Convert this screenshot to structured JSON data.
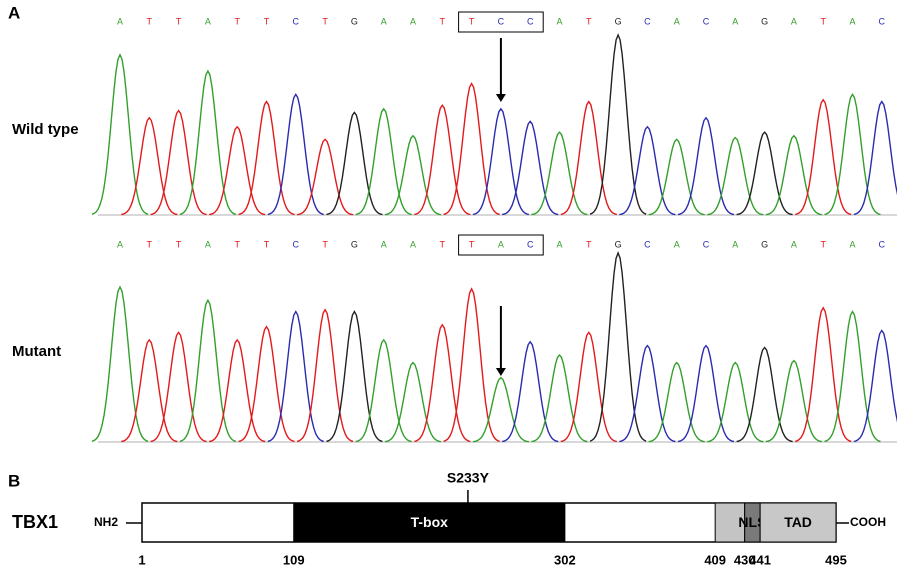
{
  "panel_a": {
    "label": "A",
    "base_colors": {
      "A": "#33a02c",
      "T": "#e31a1c",
      "C": "#2b2bb0",
      "G": "#222222"
    },
    "traces": [
      {
        "label": "Wild type",
        "sequence": {
          "before": [
            "A",
            "T",
            "T",
            "A",
            "T",
            "T",
            "C",
            "T",
            "G",
            "A",
            "A",
            "T"
          ],
          "codon": [
            "T",
            "C",
            "C"
          ],
          "after": [
            "A",
            "T",
            "G",
            "C",
            "A",
            "C",
            "A",
            "G",
            "A",
            "T",
            "A",
            "C"
          ]
        },
        "peaks": [
          89,
          54,
          58,
          80,
          49,
          63,
          67,
          42,
          57,
          59,
          44,
          61,
          73,
          59,
          52,
          46,
          63,
          100,
          49,
          42,
          54,
          43,
          46,
          44,
          64,
          67,
          63
        ]
      },
      {
        "label": "Mutant",
        "sequence": {
          "before": [
            "A",
            "T",
            "T",
            "A",
            "T",
            "T",
            "C",
            "T",
            "G",
            "A",
            "A",
            "T"
          ],
          "codon": [
            "T",
            "A",
            "C"
          ],
          "after": [
            "A",
            "T",
            "G",
            "C",
            "A",
            "C",
            "A",
            "G",
            "A",
            "T",
            "A",
            "C"
          ]
        },
        "peaks": [
          82,
          54,
          58,
          75,
          54,
          61,
          69,
          70,
          69,
          54,
          42,
          62,
          81,
          34,
          53,
          46,
          58,
          100,
          51,
          42,
          51,
          42,
          50,
          43,
          71,
          69,
          59
        ]
      }
    ]
  },
  "panel_b": {
    "label": "B",
    "protein": "TBX1",
    "n_term": "NH2",
    "c_term": "COOH",
    "mutation": {
      "label": "S233Y",
      "position": 233
    },
    "domains": [
      {
        "start": 109,
        "end": 302,
        "label": "T-box",
        "color": "#000000"
      },
      {
        "start": 409,
        "end": 430,
        "color": "#c4c4c4"
      },
      {
        "start": 430,
        "end": 441,
        "label": "NLS",
        "color": "#7a7a7a"
      },
      {
        "start": 441,
        "end": 495,
        "label": "TAD",
        "color": "#c8c8c8"
      }
    ],
    "ticks": [
      1,
      109,
      302,
      409,
      430,
      441,
      495
    ]
  }
}
